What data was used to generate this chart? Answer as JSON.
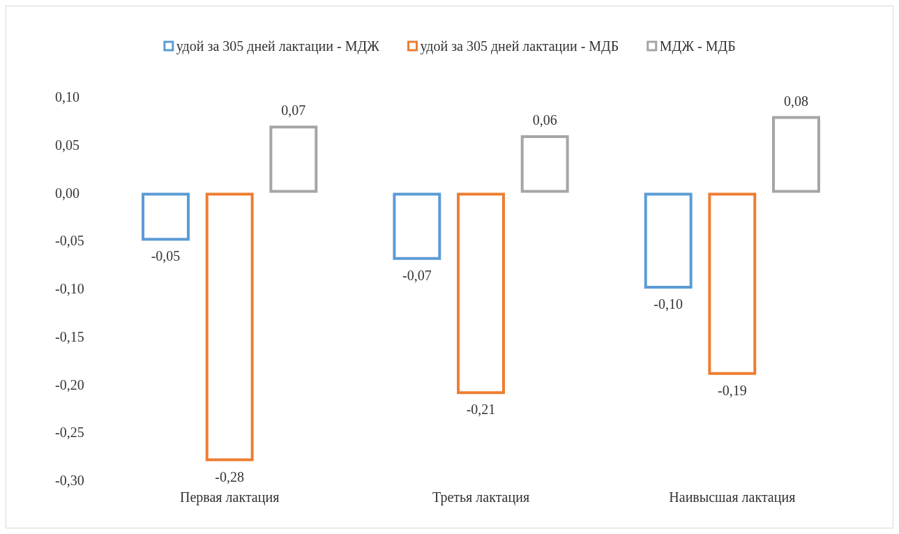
{
  "chart_data": {
    "type": "bar",
    "categories": [
      "Первая лактация",
      "Третья лактация",
      "Наивысшая лактация"
    ],
    "series": [
      {
        "name": "удой за 305 дней лактации - МДЖ",
        "color": "#5b9bd5",
        "values": [
          -0.05,
          -0.07,
          -0.1
        ],
        "value_labels": [
          "-0,05",
          "-0,07",
          "-0,10"
        ]
      },
      {
        "name": "удой за 305 дней лактации - МДБ",
        "color": "#ed7d31",
        "values": [
          -0.28,
          -0.21,
          -0.19
        ],
        "value_labels": [
          "-0,28",
          "-0,21",
          "-0,19"
        ]
      },
      {
        "name": "МДЖ - МДБ",
        "color": "#a5a5a5",
        "values": [
          0.07,
          0.06,
          0.08
        ],
        "value_labels": [
          "0,07",
          "0,06",
          "0,08"
        ]
      }
    ],
    "ylim": [
      -0.3,
      0.1
    ],
    "yticks": [
      {
        "value": -0.3,
        "label": "-0,30"
      },
      {
        "value": -0.25,
        "label": "-0,25"
      },
      {
        "value": -0.2,
        "label": "-0,20"
      },
      {
        "value": -0.15,
        "label": "-0,15"
      },
      {
        "value": -0.1,
        "label": "-0,10"
      },
      {
        "value": -0.05,
        "label": "-0,05"
      },
      {
        "value": 0,
        "label": "0,00"
      },
      {
        "value": 0.05,
        "label": "0,05"
      },
      {
        "value": 0.1,
        "label": "0,10"
      }
    ],
    "grid": false,
    "legend": "top"
  }
}
